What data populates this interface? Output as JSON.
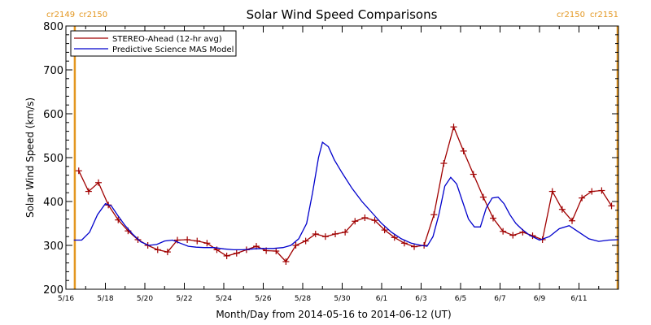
{
  "chart_data": {
    "type": "line",
    "title": "Solar Wind Speed Comparisons",
    "xlabel": "Month/Day from 2014-05-16 to 2014-06-12 (UT)",
    "ylabel": "Solar Wind Speed (km/s)",
    "xlim": [
      0,
      28
    ],
    "ylim": [
      200,
      800
    ],
    "x_ticks": [
      {
        "x": 0,
        "label": "5/16"
      },
      {
        "x": 2,
        "label": "5/18"
      },
      {
        "x": 4,
        "label": "5/20"
      },
      {
        "x": 6,
        "label": "5/22"
      },
      {
        "x": 8,
        "label": "5/24"
      },
      {
        "x": 10,
        "label": "5/26"
      },
      {
        "x": 12,
        "label": "5/28"
      },
      {
        "x": 14,
        "label": "5/30"
      },
      {
        "x": 16,
        "label": "6/1"
      },
      {
        "x": 18,
        "label": "6/3"
      },
      {
        "x": 20,
        "label": "6/5"
      },
      {
        "x": 22,
        "label": "6/7"
      },
      {
        "x": 24,
        "label": "6/9"
      },
      {
        "x": 26,
        "label": "6/11"
      }
    ],
    "y_ticks": [
      200,
      300,
      400,
      500,
      600,
      700,
      800
    ],
    "carrington_markers": [
      {
        "x": 0.45,
        "label_left": "cr2149",
        "label_right": "cr2150",
        "side": "left"
      },
      {
        "x": 28,
        "label_left": "cr2150",
        "label_right": "cr2151",
        "side": "right"
      }
    ],
    "legend_placement": "top-left",
    "series": [
      {
        "name": "STEREO-Ahead (12-hr avg)",
        "color": "#a00000",
        "marker": "plus",
        "x": [
          0.65,
          1.15,
          1.65,
          2.15,
          2.65,
          3.15,
          3.65,
          4.15,
          4.65,
          5.15,
          5.65,
          6.15,
          6.65,
          7.15,
          7.65,
          8.15,
          8.65,
          9.15,
          9.65,
          10.15,
          10.65,
          11.15,
          11.65,
          12.15,
          12.65,
          13.15,
          13.65,
          14.15,
          14.65,
          15.15,
          15.65,
          16.15,
          16.65,
          17.15,
          17.65,
          18.15,
          18.65,
          19.15,
          19.65,
          20.15,
          20.65,
          21.15,
          21.65,
          22.15,
          22.65,
          23.15,
          23.65,
          24.15,
          24.65,
          25.15,
          25.65,
          26.15,
          26.65,
          27.15,
          27.65
        ],
        "values": [
          470,
          423,
          443,
          392,
          358,
          333,
          313,
          300,
          290,
          285,
          312,
          313,
          310,
          305,
          290,
          276,
          282,
          290,
          298,
          288,
          287,
          263,
          300,
          310,
          326,
          320,
          326,
          330,
          355,
          363,
          357,
          335,
          318,
          305,
          297,
          300,
          370,
          487,
          570,
          515,
          462,
          410,
          362,
          332,
          323,
          330,
          322,
          313,
          423,
          382,
          356,
          408,
          423,
          425,
          390
        ]
      },
      {
        "name": "Predictive Science MAS Model",
        "color": "#0000cc",
        "marker": "none",
        "x": [
          0.4,
          0.8,
          1.2,
          1.6,
          2.0,
          2.3,
          2.6,
          3.0,
          3.4,
          3.8,
          4.2,
          4.6,
          5.0,
          5.4,
          5.8,
          6.2,
          6.6,
          7.0,
          7.5,
          8.0,
          8.5,
          9.0,
          9.5,
          10.0,
          10.5,
          11.0,
          11.4,
          11.8,
          12.2,
          12.5,
          12.8,
          13.0,
          13.3,
          13.6,
          14.0,
          14.5,
          15.0,
          15.5,
          16.0,
          16.5,
          17.0,
          17.5,
          18.0,
          18.3,
          18.6,
          18.9,
          19.2,
          19.5,
          19.8,
          20.1,
          20.4,
          20.7,
          21.0,
          21.3,
          21.6,
          21.9,
          22.2,
          22.5,
          22.8,
          23.1,
          23.5,
          24.0,
          24.5,
          25.0,
          25.5,
          26.0,
          26.5,
          27.0,
          27.5,
          28.0
        ],
        "values": [
          312,
          312,
          330,
          370,
          395,
          390,
          370,
          345,
          325,
          308,
          300,
          302,
          310,
          312,
          305,
          298,
          296,
          295,
          295,
          292,
          290,
          290,
          292,
          293,
          293,
          295,
          300,
          315,
          350,
          420,
          500,
          535,
          525,
          495,
          465,
          430,
          400,
          375,
          350,
          330,
          315,
          305,
          300,
          298,
          320,
          370,
          435,
          455,
          440,
          400,
          360,
          342,
          342,
          385,
          408,
          410,
          395,
          370,
          350,
          337,
          323,
          312,
          320,
          338,
          345,
          330,
          315,
          309,
          312,
          313
        ]
      }
    ]
  }
}
